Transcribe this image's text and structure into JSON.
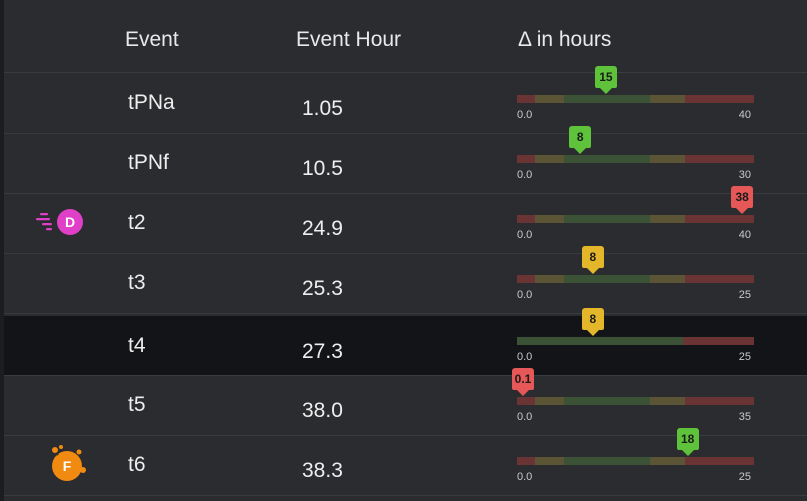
{
  "header": {
    "event": "Event",
    "hour": "Event Hour",
    "delta": "Δ in hours"
  },
  "colors": {
    "red": "#6a3434",
    "yellow": "#5b5535",
    "green": "#3b5236",
    "marker_green": "#5fc23b",
    "marker_red": "#e65757",
    "marker_yellow": "#e4b72a",
    "badge_pink": "#e040c8",
    "badge_orange": "#f08a10"
  },
  "rows": [
    {
      "event": "tPNa",
      "hour": "1.05",
      "min": "0.0",
      "max": "40",
      "delta": "15",
      "delta_value": 15,
      "range_max": 40,
      "marker_color": "green"
    },
    {
      "event": "tPNf",
      "hour": "10.5",
      "min": "0.0",
      "max": "30",
      "delta": "8",
      "delta_value": 8,
      "range_max": 30,
      "marker_color": "green"
    },
    {
      "event": "t2",
      "hour": "24.9",
      "min": "0.0",
      "max": "40",
      "delta": "38",
      "delta_value": 38,
      "range_max": 40,
      "marker_color": "red",
      "badge": {
        "letter": "D",
        "icon": "speed-d-badge-icon"
      }
    },
    {
      "event": "t3",
      "hour": "25.3",
      "min": "0.0",
      "max": "25",
      "delta": "8",
      "delta_value": 8,
      "range_max": 25,
      "marker_color": "yellow"
    },
    {
      "event": "t4",
      "hour": "27.3",
      "min": "0.0",
      "max": "25",
      "delta": "8",
      "delta_value": 8,
      "range_max": 25,
      "marker_color": "yellow",
      "selected": true
    },
    {
      "event": "t5",
      "hour": "38.0",
      "min": "0.0",
      "max": "35",
      "delta": "0.1",
      "delta_value": 0.1,
      "range_max": 35,
      "marker_color": "red"
    },
    {
      "event": "t6",
      "hour": "38.3",
      "min": "0.0",
      "max": "25",
      "delta": "18",
      "delta_value": 18,
      "range_max": 25,
      "marker_color": "green",
      "badge": {
        "letter": "F",
        "icon": "fragment-f-badge-icon"
      }
    }
  ]
}
